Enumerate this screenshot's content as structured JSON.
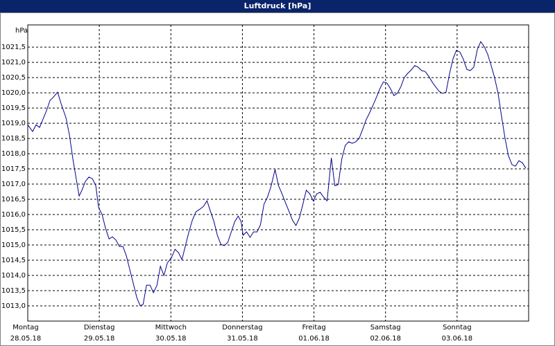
{
  "chart_data": {
    "type": "line",
    "title": "Luftdruck [hPa]",
    "y_label": "hPa",
    "xlim": [
      0,
      7
    ],
    "ylim": [
      1012.5,
      1022.23
    ],
    "xticks": [
      {
        "value": 0,
        "label": [
          "Montag",
          "28.05.18"
        ]
      },
      {
        "value": 1,
        "label": [
          "Dienstag",
          "29.05.18"
        ]
      },
      {
        "value": 2,
        "label": [
          "Mittwoch",
          "30.05.18"
        ]
      },
      {
        "value": 3,
        "label": [
          "Donnerstag",
          "31.05.18"
        ]
      },
      {
        "value": 4,
        "label": [
          "Freitag",
          "01.06.18"
        ]
      },
      {
        "value": 5,
        "label": [
          "Samstag",
          "02.06.18"
        ]
      },
      {
        "value": 6,
        "label": [
          "Sonntag",
          "03.06.18"
        ]
      }
    ],
    "yticks": [
      {
        "value": 1013,
        "label": "1013,0"
      },
      {
        "value": 1013.5,
        "label": "1013,5"
      },
      {
        "value": 1014,
        "label": "1014,0"
      },
      {
        "value": 1014.5,
        "label": "1014,5"
      },
      {
        "value": 1015,
        "label": "1015,0"
      },
      {
        "value": 1015.5,
        "label": "1015,5"
      },
      {
        "value": 1016,
        "label": "1016,0"
      },
      {
        "value": 1016.5,
        "label": "1016,5"
      },
      {
        "value": 1017,
        "label": "1017,0"
      },
      {
        "value": 1017.5,
        "label": "1017,5"
      },
      {
        "value": 1018,
        "label": "1018,0"
      },
      {
        "value": 1018.5,
        "label": "1018,5"
      },
      {
        "value": 1019,
        "label": "1019,0"
      },
      {
        "value": 1019.5,
        "label": "1019,5"
      },
      {
        "value": 1020,
        "label": "1020,0"
      },
      {
        "value": 1020.5,
        "label": "1020,5"
      },
      {
        "value": 1021,
        "label": "1021,0"
      },
      {
        "value": 1021.5,
        "label": "1021,5"
      }
    ],
    "grid": true,
    "x": [
      0,
      0.068,
      0.117,
      0.165,
      0.214,
      0.262,
      0.311,
      0.359,
      0.417,
      0.466,
      0.534,
      0.583,
      0.631,
      0.68,
      0.718,
      0.757,
      0.806,
      0.854,
      0.903,
      0.951,
      0.99,
      1.039,
      1.087,
      1.136,
      1.184,
      1.233,
      1.282,
      1.33,
      1.379,
      1.427,
      1.476,
      1.524,
      1.573,
      1.612,
      1.66,
      1.709,
      1.757,
      1.806,
      1.854,
      1.903,
      1.951,
      2.01,
      2.058,
      2.107,
      2.155,
      2.204,
      2.252,
      2.301,
      2.35,
      2.408,
      2.456,
      2.505,
      2.553,
      2.602,
      2.65,
      2.699,
      2.748,
      2.796,
      2.845,
      2.893,
      2.942,
      2.981,
      3.01,
      3.058,
      3.107,
      3.155,
      3.204,
      3.252,
      3.301,
      3.35,
      3.398,
      3.456,
      3.505,
      3.553,
      3.602,
      3.65,
      3.699,
      3.748,
      3.796,
      3.845,
      3.893,
      3.942,
      3.99,
      4.039,
      4.087,
      4.136,
      4.184,
      4.243,
      4.291,
      4.34,
      4.388,
      4.437,
      4.485,
      4.534,
      4.583,
      4.631,
      4.68,
      4.728,
      4.777,
      4.825,
      4.874,
      4.922,
      4.971,
      5.019,
      5.068,
      5.117,
      5.165,
      5.214,
      5.262,
      5.311,
      5.359,
      5.408,
      5.456,
      5.505,
      5.553,
      5.602,
      5.65,
      5.699,
      5.748,
      5.796,
      5.845,
      5.893,
      5.942,
      5.99,
      6.039,
      6.087,
      6.136,
      6.184,
      6.233,
      6.282,
      6.33,
      6.379,
      6.427,
      6.476,
      6.524,
      6.573,
      6.621,
      6.67,
      6.718,
      6.767,
      6.816,
      6.864,
      6.913,
      6.961
    ],
    "series": [
      {
        "color": "#00008b",
        "values": [
          1018.95,
          1018.73,
          1018.95,
          1018.86,
          1019.14,
          1019.41,
          1019.75,
          1019.86,
          1020.02,
          1019.64,
          1019.18,
          1018.61,
          1017.82,
          1017.14,
          1016.61,
          1016.8,
          1017.09,
          1017.23,
          1017.18,
          1016.95,
          1016.23,
          1016.0,
          1015.55,
          1015.2,
          1015.27,
          1015.16,
          1014.95,
          1014.95,
          1014.64,
          1014.18,
          1013.73,
          1013.27,
          1013.0,
          1013.05,
          1013.68,
          1013.68,
          1013.43,
          1013.68,
          1014.3,
          1014.0,
          1014.41,
          1014.59,
          1014.86,
          1014.75,
          1014.52,
          1014.98,
          1015.43,
          1015.82,
          1016.09,
          1016.18,
          1016.27,
          1016.45,
          1016.11,
          1015.77,
          1015.32,
          1015.02,
          1014.98,
          1015.09,
          1015.43,
          1015.77,
          1015.95,
          1015.77,
          1015.32,
          1015.43,
          1015.25,
          1015.43,
          1015.43,
          1015.66,
          1016.34,
          1016.57,
          1016.91,
          1017.48,
          1016.95,
          1016.68,
          1016.39,
          1016.11,
          1015.82,
          1015.64,
          1015.89,
          1016.34,
          1016.8,
          1016.68,
          1016.45,
          1016.68,
          1016.73,
          1016.57,
          1016.45,
          1017.86,
          1016.95,
          1016.98,
          1017.82,
          1018.27,
          1018.39,
          1018.34,
          1018.39,
          1018.5,
          1018.8,
          1019.11,
          1019.34,
          1019.59,
          1019.86,
          1020.14,
          1020.36,
          1020.32,
          1020.14,
          1019.91,
          1019.98,
          1020.2,
          1020.5,
          1020.64,
          1020.75,
          1020.89,
          1020.84,
          1020.73,
          1020.7,
          1020.55,
          1020.36,
          1020.2,
          1020.05,
          1019.98,
          1020.02,
          1020.61,
          1021.11,
          1021.39,
          1021.34,
          1021.11,
          1020.77,
          1020.73,
          1020.84,
          1021.41,
          1021.68,
          1021.52,
          1021.27,
          1020.89,
          1020.5,
          1019.98,
          1019.23,
          1018.5,
          1017.93,
          1017.64,
          1017.59,
          1017.77,
          1017.7,
          1017.52
        ]
      }
    ]
  }
}
